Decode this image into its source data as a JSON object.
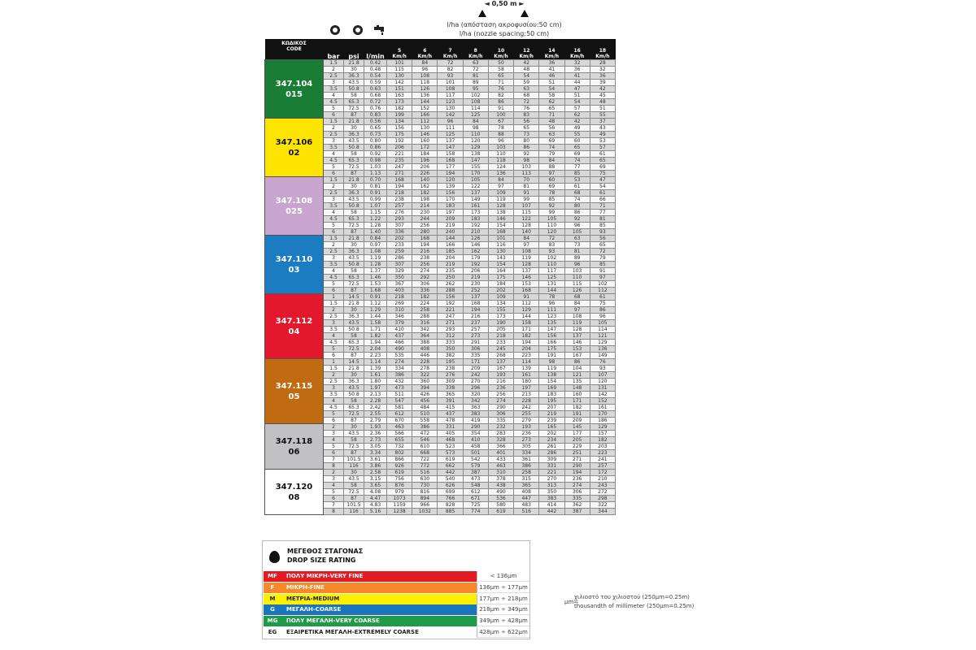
{
  "header": {
    "spacing_label": "◄ 0,50 m ►",
    "lha_greek": "l/ha (απόσταση ακροφυσίου:50 cm)",
    "lha_english": "l/ha (nozzle spacing:50 cm)",
    "icons": [
      "pressure-gauge-bar-icon",
      "pressure-gauge-psi-icon",
      "water-tap-icon"
    ]
  },
  "table": {
    "code_header": [
      "ΚΩΔΙΚΟΣ",
      "CODE"
    ],
    "unit_headers": [
      "bar",
      "psi",
      "l/min"
    ],
    "speed_headers": [
      "5",
      "6",
      "7",
      "8",
      "10",
      "12",
      "14",
      "16",
      "18"
    ],
    "speed_unit": "Km/h",
    "groups": [
      {
        "code": "347.104",
        "size": "015",
        "color": "#1a7d36",
        "text_color": "#ffffff",
        "rows": [
          [
            "1.5",
            "21.8",
            "0.42",
            101,
            84,
            72,
            63,
            50,
            42,
            36,
            32,
            28
          ],
          [
            "2",
            "30",
            "0.48",
            115,
            96,
            82,
            72,
            58,
            48,
            41,
            36,
            32
          ],
          [
            "2.5",
            "36.3",
            "0.54",
            130,
            108,
            93,
            81,
            65,
            54,
            46,
            41,
            36
          ],
          [
            "3",
            "43.5",
            "0.59",
            142,
            118,
            101,
            89,
            71,
            59,
            51,
            44,
            39
          ],
          [
            "3.5",
            "50.8",
            "0.63",
            151,
            126,
            108,
            95,
            76,
            63,
            54,
            47,
            42
          ],
          [
            "4",
            "58",
            "0.68",
            163,
            136,
            117,
            102,
            82,
            68,
            58,
            51,
            45
          ],
          [
            "4.5",
            "65.3",
            "0.72",
            173,
            144,
            123,
            108,
            86,
            72,
            62,
            54,
            48
          ],
          [
            "5",
            "72.5",
            "0.76",
            182,
            152,
            130,
            114,
            91,
            76,
            65,
            57,
            51
          ],
          [
            "6",
            "87",
            "0.83",
            199,
            166,
            142,
            125,
            100,
            83,
            71,
            62,
            55
          ]
        ]
      },
      {
        "code": "347.106",
        "size": "02",
        "color": "#ffe400",
        "text_color": "#111111",
        "rows": [
          [
            "1.5",
            "21.8",
            "0.56",
            134,
            112,
            96,
            84,
            67,
            56,
            48,
            42,
            37
          ],
          [
            "2",
            "30",
            "0.65",
            156,
            130,
            111,
            98,
            78,
            65,
            56,
            49,
            43
          ],
          [
            "2.5",
            "36.3",
            "0.73",
            175,
            146,
            125,
            110,
            88,
            73,
            63,
            55,
            49
          ],
          [
            "3",
            "43.5",
            "0.80",
            192,
            160,
            137,
            120,
            96,
            80,
            69,
            60,
            53
          ],
          [
            "3.5",
            "50.8",
            "0.86",
            206,
            172,
            147,
            129,
            103,
            86,
            74,
            65,
            57
          ],
          [
            "4",
            "58",
            "0.92",
            221,
            184,
            158,
            138,
            110,
            92,
            79,
            69,
            61
          ],
          [
            "4.5",
            "65.3",
            "0.98",
            235,
            196,
            168,
            147,
            118,
            98,
            84,
            74,
            65
          ],
          [
            "5",
            "72.5",
            "1.03",
            247,
            206,
            177,
            155,
            124,
            103,
            88,
            77,
            69
          ],
          [
            "6",
            "87",
            "1.13",
            271,
            226,
            194,
            170,
            136,
            113,
            97,
            85,
            75
          ]
        ]
      },
      {
        "code": "347.108",
        "size": "025",
        "color": "#c7a5cf",
        "text_color": "#ffffff",
        "rows": [
          [
            "1.5",
            "21.8",
            "0.70",
            168,
            140,
            120,
            105,
            84,
            70,
            60,
            53,
            47
          ],
          [
            "2",
            "30",
            "0.81",
            194,
            162,
            139,
            122,
            97,
            81,
            69,
            61,
            54
          ],
          [
            "2.5",
            "36.3",
            "0.91",
            218,
            182,
            156,
            137,
            109,
            91,
            78,
            68,
            61
          ],
          [
            "3",
            "43.5",
            "0.99",
            238,
            198,
            170,
            149,
            119,
            99,
            85,
            74,
            66
          ],
          [
            "3.5",
            "50.8",
            "1.07",
            257,
            214,
            183,
            161,
            128,
            107,
            92,
            80,
            71
          ],
          [
            "4",
            "58",
            "1.15",
            276,
            230,
            197,
            173,
            138,
            115,
            99,
            86,
            77
          ],
          [
            "4.5",
            "65.3",
            "1.22",
            293,
            244,
            209,
            183,
            146,
            122,
            105,
            92,
            81
          ],
          [
            "5",
            "72.5",
            "1.28",
            307,
            256,
            219,
            192,
            154,
            128,
            110,
            96,
            85
          ],
          [
            "6",
            "87",
            "1.40",
            336,
            280,
            240,
            210,
            168,
            140,
            120,
            105,
            93
          ]
        ]
      },
      {
        "code": "347.110",
        "size": "03",
        "color": "#1b7cc2",
        "text_color": "#ffffff",
        "rows": [
          [
            "1.5",
            "21.8",
            "0.84",
            202,
            168,
            144,
            126,
            101,
            84,
            72,
            63,
            56
          ],
          [
            "2",
            "30",
            "0.97",
            233,
            194,
            166,
            146,
            116,
            97,
            83,
            73,
            65
          ],
          [
            "2.5",
            "36.3",
            "1.08",
            259,
            216,
            185,
            162,
            130,
            108,
            93,
            81,
            72
          ],
          [
            "3",
            "43.5",
            "1.19",
            286,
            238,
            204,
            179,
            143,
            119,
            102,
            89,
            79
          ],
          [
            "3.5",
            "50.8",
            "1.28",
            307,
            256,
            219,
            192,
            154,
            128,
            110,
            96,
            85
          ],
          [
            "4",
            "58",
            "1.37",
            329,
            274,
            235,
            206,
            164,
            137,
            117,
            103,
            91
          ],
          [
            "4.5",
            "65.3",
            "1.46",
            350,
            292,
            250,
            219,
            175,
            146,
            125,
            110,
            97
          ],
          [
            "5",
            "72.5",
            "1.53",
            367,
            306,
            262,
            230,
            184,
            153,
            131,
            115,
            102
          ],
          [
            "6",
            "87",
            "1.68",
            403,
            336,
            288,
            252,
            202,
            168,
            144,
            126,
            112
          ]
        ]
      },
      {
        "code": "347.112",
        "size": "04",
        "color": "#e3182d",
        "text_color": "#ffffff",
        "rows": [
          [
            "1",
            "14.5",
            "0.91",
            218,
            182,
            156,
            137,
            109,
            91,
            78,
            68,
            61
          ],
          [
            "1.5",
            "21.8",
            "1.12",
            269,
            224,
            192,
            168,
            134,
            112,
            96,
            84,
            75
          ],
          [
            "2",
            "30",
            "1.29",
            310,
            258,
            221,
            194,
            155,
            129,
            111,
            97,
            86
          ],
          [
            "2.5",
            "36.3",
            "1.44",
            346,
            288,
            247,
            216,
            173,
            144,
            123,
            108,
            96
          ],
          [
            "3",
            "43.5",
            "1.58",
            379,
            316,
            271,
            237,
            190,
            158,
            135,
            119,
            105
          ],
          [
            "3.5",
            "50.8",
            "1.71",
            410,
            342,
            293,
            257,
            205,
            171,
            147,
            128,
            114
          ],
          [
            "4",
            "58",
            "1.82",
            437,
            364,
            312,
            273,
            218,
            182,
            156,
            137,
            121
          ],
          [
            "4.5",
            "65.3",
            "1.94",
            466,
            388,
            333,
            291,
            233,
            194,
            166,
            146,
            129
          ],
          [
            "5",
            "72.5",
            "2.04",
            490,
            408,
            350,
            306,
            245,
            204,
            175,
            153,
            136
          ],
          [
            "6",
            "87",
            "2.23",
            535,
            446,
            382,
            335,
            268,
            223,
            191,
            167,
            149
          ]
        ]
      },
      {
        "code": "347.115",
        "size": "05",
        "color": "#c06a12",
        "text_color": "#ffffff",
        "rows": [
          [
            "1",
            "14.5",
            "1.14",
            274,
            228,
            195,
            171,
            137,
            114,
            98,
            86,
            76
          ],
          [
            "1.5",
            "21.8",
            "1.39",
            334,
            278,
            238,
            209,
            167,
            139,
            119,
            104,
            93
          ],
          [
            "2",
            "30",
            "1.61",
            386,
            322,
            276,
            242,
            193,
            161,
            138,
            121,
            107
          ],
          [
            "2.5",
            "36.3",
            "1.80",
            432,
            360,
            309,
            270,
            216,
            180,
            154,
            135,
            120
          ],
          [
            "3",
            "43.5",
            "1.97",
            473,
            394,
            338,
            296,
            236,
            197,
            169,
            148,
            131
          ],
          [
            "3.5",
            "50.8",
            "2.13",
            511,
            426,
            365,
            320,
            256,
            213,
            183,
            160,
            142
          ],
          [
            "4",
            "58",
            "2.28",
            547,
            456,
            391,
            342,
            274,
            228,
            195,
            171,
            152
          ],
          [
            "4.5",
            "65.3",
            "2.42",
            581,
            484,
            415,
            363,
            290,
            242,
            207,
            182,
            161
          ],
          [
            "5",
            "72.5",
            "2.55",
            612,
            510,
            437,
            383,
            306,
            255,
            219,
            191,
            170
          ],
          [
            "6",
            "87",
            "2.79",
            670,
            558,
            478,
            419,
            335,
            279,
            239,
            209,
            186
          ]
        ]
      },
      {
        "code": "347.118",
        "size": "06",
        "color": "#c1c1c3",
        "text_color": "#111111",
        "rows": [
          [
            "2",
            "30",
            "1.93",
            463,
            386,
            331,
            290,
            232,
            193,
            165,
            145,
            129
          ],
          [
            "3",
            "43.5",
            "2.36",
            566,
            472,
            405,
            354,
            283,
            236,
            202,
            177,
            157
          ],
          [
            "4",
            "58",
            "2.73",
            655,
            546,
            468,
            410,
            328,
            273,
            234,
            205,
            182
          ],
          [
            "5",
            "72.5",
            "3.05",
            732,
            610,
            523,
            458,
            366,
            305,
            261,
            229,
            203
          ],
          [
            "6",
            "87",
            "3.34",
            802,
            668,
            573,
            501,
            401,
            334,
            286,
            251,
            223
          ],
          [
            "7",
            "101.5",
            "3.61",
            866,
            722,
            619,
            542,
            433,
            361,
            309,
            271,
            241
          ],
          [
            "8",
            "116",
            "3.86",
            926,
            772,
            662,
            579,
            463,
            386,
            331,
            290,
            257
          ]
        ]
      },
      {
        "code": "347.120",
        "size": "08",
        "color": "#ffffff",
        "text_color": "#111111",
        "rows": [
          [
            "2",
            "30",
            "2.58",
            619,
            516,
            442,
            387,
            310,
            258,
            221,
            194,
            172
          ],
          [
            "3",
            "43.5",
            "3.15",
            756,
            630,
            540,
            473,
            378,
            315,
            270,
            236,
            210
          ],
          [
            "4",
            "58",
            "3.65",
            876,
            730,
            626,
            548,
            438,
            365,
            313,
            274,
            243
          ],
          [
            "5",
            "72.5",
            "4.08",
            979,
            816,
            699,
            612,
            490,
            408,
            350,
            306,
            272
          ],
          [
            "6",
            "87",
            "4.47",
            1073,
            894,
            766,
            671,
            536,
            447,
            383,
            335,
            298
          ],
          [
            "7",
            "101.5",
            "4.83",
            1159,
            966,
            828,
            725,
            580,
            483,
            414,
            362,
            322
          ],
          [
            "8",
            "116",
            "5.16",
            1238,
            1032,
            885,
            774,
            619,
            516,
            442,
            387,
            344
          ]
        ]
      }
    ]
  },
  "legend": {
    "icon": "drop-icon",
    "title_greek": "ΜΕΓΕΘΟΣ ΣΤΑΓΟΝΑΣ",
    "title_english": "DROP SIZE RATING",
    "rows": [
      {
        "abbr": "MF",
        "label": "ΠΟΛΥ ΜΙΚΡΗ-VERY FINE",
        "range": "< 136μm",
        "color": "#e31b23",
        "text_color": "#ffffff"
      },
      {
        "abbr": "F",
        "label": "ΜΙΚΡΗ-FINE",
        "range": "136μm ÷ 177μm",
        "color": "#f7892a",
        "text_color": "#ffffff"
      },
      {
        "abbr": "M",
        "label": "ΜΕΤΡΙΑ-MEDIUM",
        "range": "177μm ÷ 218μm",
        "color": "#fff000",
        "text_color": "#222222"
      },
      {
        "abbr": "G",
        "label": "ΜΕΓΑΛΗ-COARSE",
        "range": "218μm ÷ 349μm",
        "color": "#1b75bb",
        "text_color": "#ffffff"
      },
      {
        "abbr": "MG",
        "label": "ΠΟΛΥ ΜΕΓΑΛΗ-VERY COARSE",
        "range": "349μm ÷ 428μm",
        "color": "#1f9a49",
        "text_color": "#ffffff"
      },
      {
        "abbr": "EG",
        "label": "ΕΞΑΙΡΕΤΙΚΑ ΜΕΓΑΛΗ-EXTREMELY COARSE",
        "range": "428μm ÷ 622μm",
        "color": "#ffffff",
        "text_color": "#222222"
      }
    ]
  },
  "footnote": {
    "symbol": "μm=",
    "greek": "χιλιοστό του χιλιοστού (250μm=0.25m)",
    "english": "thousandth of millimeter (250μm=0.25m)"
  }
}
